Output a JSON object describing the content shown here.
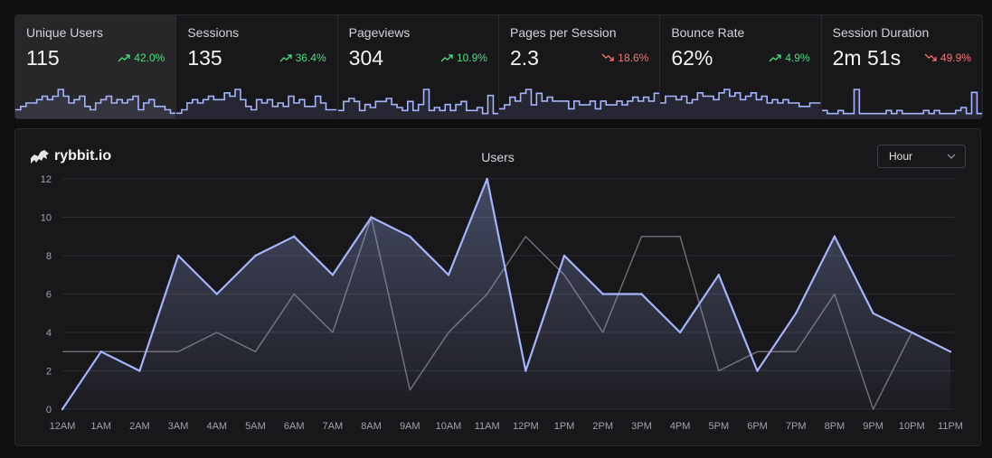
{
  "metrics": [
    {
      "label": "Unique Users",
      "value": "115",
      "change": "42.0%",
      "direction": "up",
      "spark": [
        2,
        3,
        4,
        4,
        5,
        6,
        5,
        6,
        8,
        6,
        4,
        5,
        6,
        3,
        2,
        4,
        5,
        6,
        4,
        5,
        4,
        5,
        6,
        2,
        4,
        5,
        3,
        3,
        2,
        1
      ]
    },
    {
      "label": "Sessions",
      "value": "135",
      "change": "36.4%",
      "direction": "up",
      "spark": [
        1,
        2,
        4,
        5,
        4,
        5,
        6,
        5,
        5,
        7,
        6,
        8,
        5,
        3,
        2,
        5,
        4,
        5,
        3,
        4,
        3,
        6,
        4,
        5,
        3,
        3,
        6,
        4,
        2,
        2
      ]
    },
    {
      "label": "Pageviews",
      "value": "304",
      "change": "10.9%",
      "direction": "up",
      "spark": [
        2,
        5,
        6,
        5,
        2,
        4,
        3,
        5,
        5,
        6,
        4,
        3,
        2,
        5,
        2,
        4,
        9,
        2,
        3,
        2,
        4,
        2,
        4,
        5,
        2,
        2,
        3,
        1,
        7,
        1
      ]
    },
    {
      "label": "Pages per Session",
      "value": "2.3",
      "change": "18.6%",
      "direction": "down",
      "spark": [
        2,
        3,
        5,
        4,
        6,
        7,
        3,
        6,
        4,
        5,
        4,
        4,
        4,
        2,
        4,
        3,
        3,
        4,
        2,
        4,
        3,
        3,
        4,
        3,
        4,
        5,
        4,
        5,
        4,
        6
      ]
    },
    {
      "label": "Bounce Rate",
      "value": "62%",
      "change": "4.9%",
      "direction": "up",
      "spark": [
        4,
        6,
        6,
        5,
        6,
        4,
        5,
        7,
        6,
        6,
        5,
        7,
        8,
        6,
        7,
        5,
        6,
        7,
        5,
        6,
        4,
        5,
        4,
        5,
        4,
        4,
        3,
        3,
        4,
        4
      ]
    },
    {
      "label": "Session Duration",
      "value": "2m 51s",
      "change": "49.9%",
      "direction": "down",
      "spark": [
        2,
        1,
        1,
        2,
        1,
        1,
        9,
        1,
        1,
        1,
        1,
        1,
        2,
        1,
        2,
        1,
        1,
        1,
        1,
        2,
        1,
        2,
        1,
        1,
        1,
        2,
        3,
        1,
        8,
        1
      ]
    }
  ],
  "chart": {
    "logo_text": "rybbit.io",
    "title": "Users",
    "granularity": "Hour",
    "colors": {
      "current": "#a5b4fc",
      "previous": "#6b6b70",
      "grid": "#2d2d31"
    }
  },
  "chart_data": {
    "type": "area",
    "title": "Users",
    "x": [
      "12AM",
      "1AM",
      "2AM",
      "3AM",
      "4AM",
      "5AM",
      "6AM",
      "7AM",
      "8AM",
      "9AM",
      "10AM",
      "11AM",
      "12PM",
      "1PM",
      "2PM",
      "3PM",
      "4PM",
      "5PM",
      "6PM",
      "7PM",
      "8PM",
      "9PM",
      "10PM",
      "11PM"
    ],
    "yticks": [
      0,
      2,
      4,
      6,
      8,
      10,
      12
    ],
    "ylim": [
      0,
      12
    ],
    "grid": true,
    "series": [
      {
        "values": [
          0,
          3,
          2,
          8,
          6,
          8,
          9,
          7,
          10,
          9,
          7,
          12,
          2,
          8,
          6,
          6,
          4,
          7,
          2,
          5,
          9,
          5,
          4,
          3
        ]
      },
      {
        "values": [
          3,
          3,
          3,
          3,
          4,
          3,
          6,
          4,
          10,
          1,
          4,
          6,
          9,
          7,
          4,
          9,
          9,
          2,
          3,
          3,
          6,
          0,
          4,
          3
        ]
      }
    ]
  }
}
